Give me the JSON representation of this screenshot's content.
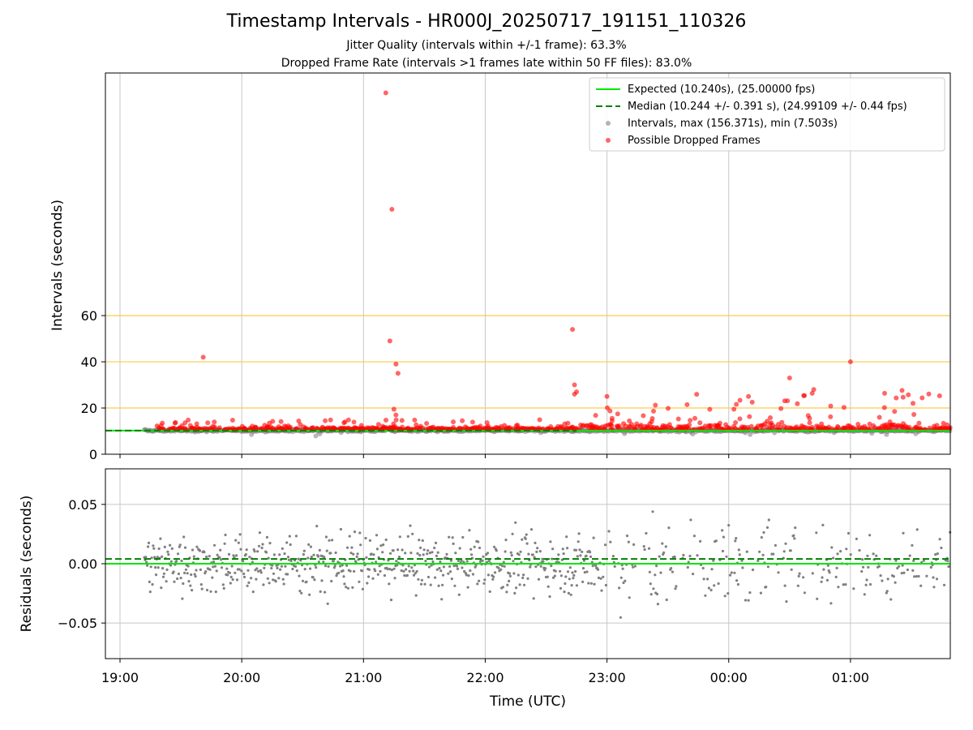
{
  "title": "Timestamp Intervals - HR000J_20250717_191151_110326",
  "subtitle_1": "Jitter Quality (intervals within +/-1 frame): 63.3%",
  "subtitle_2": "Dropped Frame Rate (intervals >1 frames late within 50 FF files): 83.0%",
  "colors": {
    "expected": "#00e600",
    "median": "#008000",
    "intervals": "#808080",
    "dropped": "#ff0000",
    "threshold_lines": "#ffc94d",
    "grid": "#c8c8c8"
  },
  "chart_data": [
    {
      "type": "scatter",
      "panel": "intervals",
      "ylabel": "Intervals (seconds)",
      "ylim": [
        0,
        165
      ],
      "yticks": [
        0,
        20,
        40,
        60
      ],
      "xlim_hours": [
        18.88,
        25.82
      ],
      "xticks": [
        "19:00",
        "20:00",
        "21:00",
        "22:00",
        "23:00",
        "00:00",
        "01:00"
      ],
      "grid": "vertical",
      "threshold_lines": [
        20,
        40,
        60
      ],
      "legend_position": "top-right",
      "legend": [
        "Expected (10.240s), (25.00000 fps)",
        "Median (10.244 +/- 0.391 s), (24.99109 +/- 0.44 fps)",
        "Intervals, max (156.371s), min (7.503s)",
        "Possible Dropped Frames"
      ],
      "expected_interval": 10.24,
      "median_interval": 10.244,
      "series": [
        {
          "name": "Possible Dropped Frames",
          "highlighted_points": [
            {
              "x": "19:41",
              "y": 42.0
            },
            {
              "x": "21:11",
              "y": 156.4
            },
            {
              "x": "21:14",
              "y": 106.0
            },
            {
              "x": "21:13",
              "y": 49.0
            },
            {
              "x": "21:16",
              "y": 39.0
            },
            {
              "x": "21:17",
              "y": 35.0
            },
            {
              "x": "21:15",
              "y": 19.5
            },
            {
              "x": "21:16",
              "y": 17.0
            },
            {
              "x": "22:43",
              "y": 54.0
            },
            {
              "x": "22:44",
              "y": 30.0
            },
            {
              "x": "22:45",
              "y": 27.0
            },
            {
              "x": "22:44",
              "y": 26.0
            },
            {
              "x": "23:00",
              "y": 25.0
            },
            {
              "x": "01:00",
              "y": 40.0
            },
            {
              "x": "00:30",
              "y": 33.0
            }
          ]
        }
      ]
    },
    {
      "type": "scatter",
      "panel": "residuals",
      "ylabel": "Residuals (seconds)",
      "xlabel": "Time (UTC)",
      "ylim": [
        -0.08,
        0.08
      ],
      "yticks": [
        "−0.05",
        "0.00",
        "0.05"
      ],
      "ytick_values": [
        -0.05,
        0.0,
        0.05
      ],
      "xticks": [
        "19:00",
        "20:00",
        "21:00",
        "22:00",
        "23:00",
        "00:00",
        "01:00"
      ],
      "grid": "both",
      "expected_residual": 0.0,
      "median_residual": 0.004
    }
  ]
}
